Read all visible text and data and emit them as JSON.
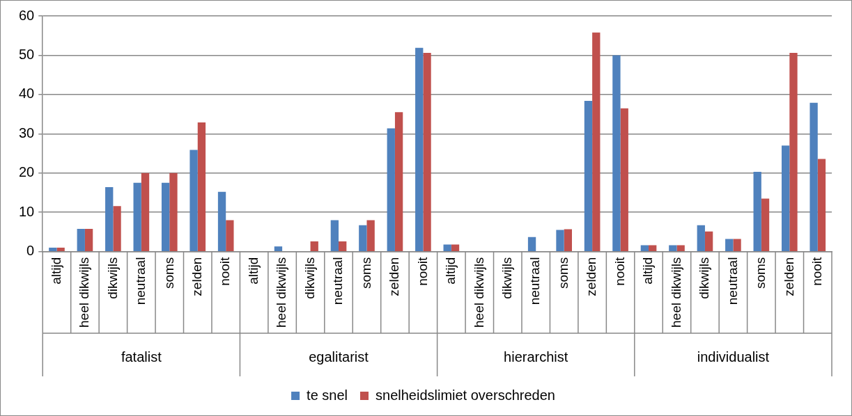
{
  "chart_data": {
    "type": "bar",
    "categories": [
      "altijd",
      "heel dikwijls",
      "dikwijls",
      "neutraal",
      "soms",
      "zelden",
      "nooit",
      "altijd",
      "heel dikwijls",
      "dikwijls",
      "neutraal",
      "soms",
      "zelden",
      "nooit",
      "altijd",
      "heel dikwijls",
      "dikwijls",
      "neutraal",
      "soms",
      "zelden",
      "nooit",
      "altijd",
      "heel dikwijls",
      "dikwijls",
      "neutraal",
      "soms",
      "zelden",
      "nooit"
    ],
    "series": [
      {
        "name": "te snel",
        "color": "#4f81bd",
        "values": [
          1,
          5.8,
          16.4,
          17.5,
          17.5,
          25.9,
          15.2,
          0,
          1.3,
          0,
          8.0,
          6.7,
          31.4,
          51.9,
          1.8,
          0,
          0,
          3.7,
          5.5,
          38.4,
          50.0,
          1.6,
          1.6,
          6.7,
          3.2,
          20.3,
          27.0,
          37.9
        ]
      },
      {
        "name": "snelheidslimiet overschreden",
        "color": "#c0504d",
        "values": [
          1,
          5.8,
          11.6,
          20,
          20,
          32.9,
          8.0,
          0,
          0,
          2.6,
          2.6,
          8.0,
          35.5,
          50.6,
          1.8,
          0,
          0,
          0,
          5.7,
          55.8,
          36.5,
          1.6,
          1.6,
          5.1,
          3.2,
          13.5,
          50.6,
          23.6
        ]
      }
    ],
    "annotations": [
      "fatalist",
      "egalitarist",
      "hierarchist",
      "individualist"
    ],
    "ylim": [
      0,
      60
    ],
    "yticks": [
      0,
      10,
      20,
      30,
      40,
      50,
      60
    ],
    "grid": "y",
    "legend": "bottom"
  }
}
